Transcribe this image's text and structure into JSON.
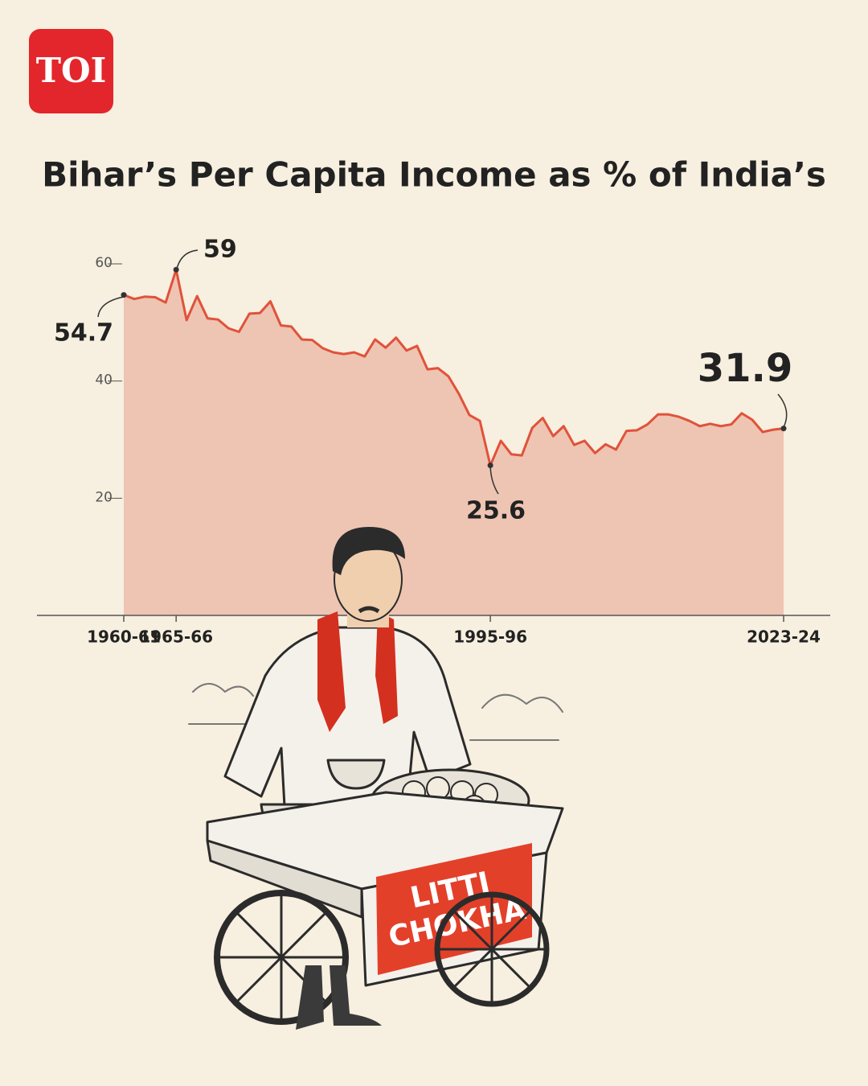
{
  "logo": "TOI",
  "chart_data": {
    "type": "line",
    "title": "Bihar’s Per Capita Income as % of India’s",
    "categories": [
      "1960-61",
      null,
      null,
      null,
      null,
      "1965-66",
      null,
      null,
      null,
      null,
      null,
      null,
      null,
      null,
      null,
      null,
      null,
      null,
      null,
      null,
      null,
      null,
      null,
      null,
      null,
      null,
      null,
      null,
      null,
      null,
      null,
      null,
      null,
      null,
      null,
      "1995-96",
      null,
      null,
      null,
      null,
      null,
      null,
      null,
      null,
      null,
      null,
      null,
      null,
      null,
      null,
      null,
      null,
      null,
      null,
      null,
      null,
      null,
      null,
      null,
      null,
      null,
      null,
      null,
      "2023-24"
    ],
    "series": [
      {
        "name": "Bihar",
        "color": "#e0523a",
        "values": [
          54.7,
          54.0,
          54.4,
          54.3,
          53.4,
          59,
          50.4,
          54.5,
          50.7,
          50.5,
          49.0,
          48.4,
          51.5,
          51.6,
          53.6,
          49.5,
          49.3,
          47.1,
          47.0,
          45.6,
          44.9,
          44.6,
          44.9,
          44.2,
          47.1,
          45.7,
          47.4,
          45.2,
          46.0,
          42.0,
          42.2,
          40.8,
          37.8,
          34.2,
          33.2,
          25.6,
          29.8,
          27.5,
          27.3,
          32.0,
          33.7,
          30.6,
          32.3,
          29.1,
          29.8,
          27.7,
          29.2,
          28.3,
          31.5,
          31.6,
          32.6,
          34.3,
          34.3,
          33.9,
          33.2,
          32.3,
          32.7,
          32.3,
          32.6,
          34.5,
          33.4,
          31.3,
          31.7,
          31.9
        ]
      }
    ],
    "area_color": "#eec4b3",
    "ylim": [
      0,
      60
    ],
    "yticks": [
      20,
      40,
      60
    ],
    "grid": false
  },
  "illustration": {
    "sign": [
      "LITTI",
      "CHOKHA"
    ]
  }
}
